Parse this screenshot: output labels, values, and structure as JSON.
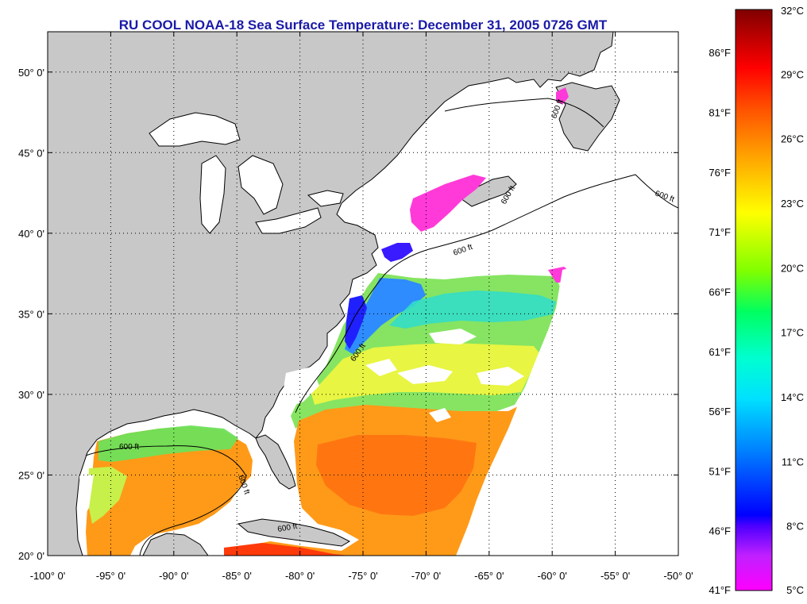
{
  "title": "RU COOL  NOAA-18  Sea Surface Temperature:  December 31, 2005 0726 GMT",
  "map": {
    "lon_range": [
      -100,
      -50
    ],
    "lat_range": [
      20,
      52.5
    ],
    "lon_ticks": [
      "-100° 0'",
      "-95° 0'",
      "-90° 0'",
      "-85° 0'",
      "-80° 0'",
      "-75° 0'",
      "-70° 0'",
      "-65° 0'",
      "-60° 0'",
      "-55° 0'",
      "-50° 0'"
    ],
    "lat_ticks": [
      "20° 0'",
      "25° 0'",
      "30° 0'",
      "35° 0'",
      "40° 0'",
      "45° 0'",
      "50° 0'"
    ],
    "grid": "dotted",
    "land_color": "#c8c8c8",
    "ocean_no_data_color": "#ffffff",
    "contour_label": "600 ft",
    "contour_labels": [
      "600 ft",
      "600 ft",
      "600 ft",
      "600 ft",
      "600 ft",
      "600 ft",
      "600 ft",
      "600 ft"
    ]
  },
  "colorbar": {
    "range_c": [
      5,
      32
    ],
    "celsius_labels": [
      "32°C",
      "29°C",
      "26°C",
      "23°C",
      "20°C",
      "17°C",
      "14°C",
      "11°C",
      "8°C",
      "5°C"
    ],
    "fahrenheit_labels": [
      "86°F",
      "81°F",
      "76°F",
      "71°F",
      "66°F",
      "61°F",
      "56°F",
      "51°F",
      "46°F",
      "41°F"
    ],
    "colors": [
      "#ff00ff",
      "#8000ff",
      "#0000ff",
      "#00a0ff",
      "#00ffff",
      "#00ff80",
      "#80ff00",
      "#ffff00",
      "#ffa000",
      "#ff4000",
      "#ff0000",
      "#800000"
    ]
  }
}
